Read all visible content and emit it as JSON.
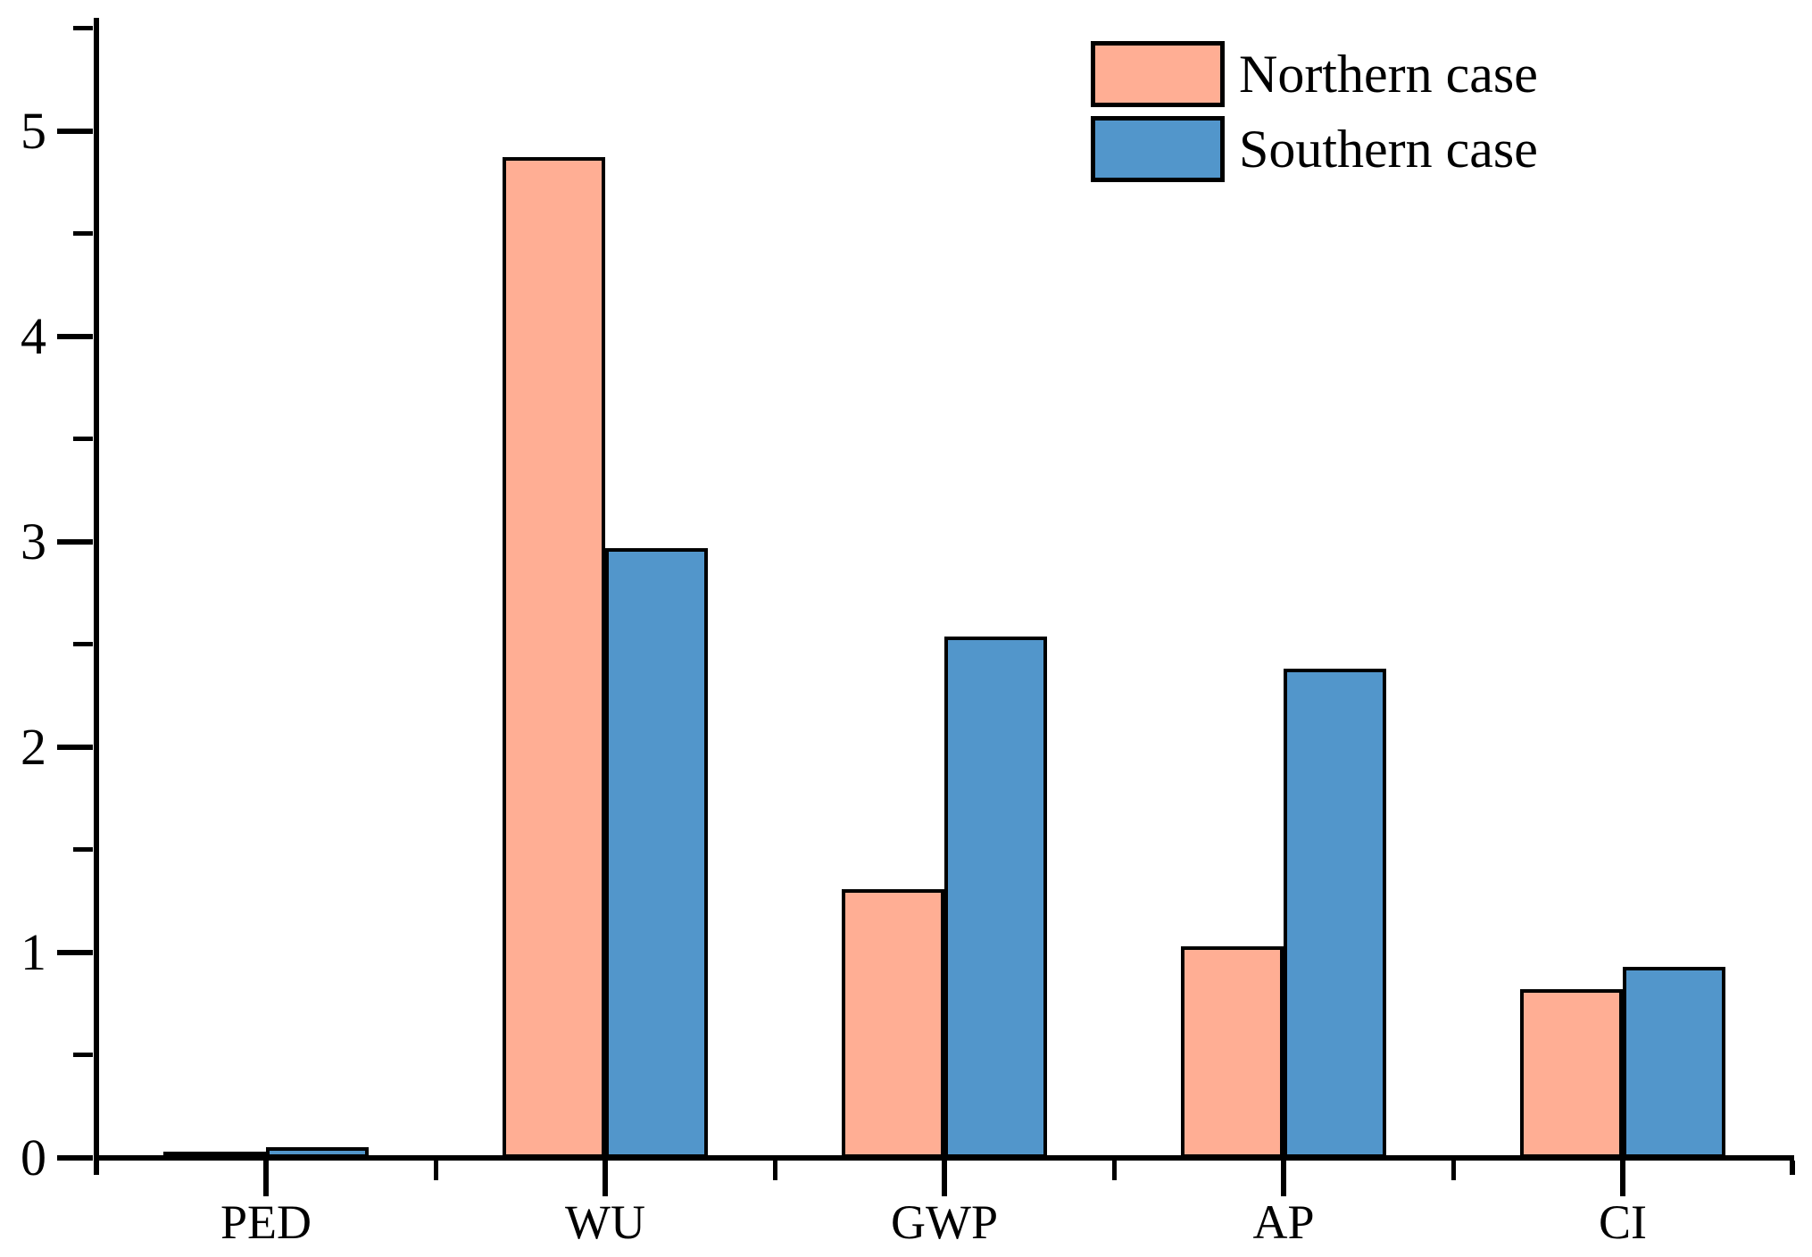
{
  "chart_data": {
    "type": "bar",
    "categories": [
      "PED",
      "WU",
      "GWP",
      "AP",
      "CI"
    ],
    "series": [
      {
        "name": "Northern case",
        "color": "#FFAE94",
        "values": [
          0.03,
          4.87,
          1.31,
          1.03,
          0.82
        ]
      },
      {
        "name": "Southern case",
        "color": "#5296CB",
        "values": [
          0.05,
          2.97,
          2.54,
          2.38,
          0.93
        ]
      }
    ],
    "title": "",
    "xlabel": "",
    "ylabel": "",
    "ylim": [
      0,
      5.55
    ],
    "y_major_ticks": [
      0,
      1,
      2,
      3,
      4,
      5
    ],
    "y_minor_ticks": [
      0.5,
      1.5,
      2.5,
      3.5,
      4.5,
      5.5
    ],
    "grid": false,
    "legend_position": "top-right",
    "bar_outline_color": "#000000"
  }
}
